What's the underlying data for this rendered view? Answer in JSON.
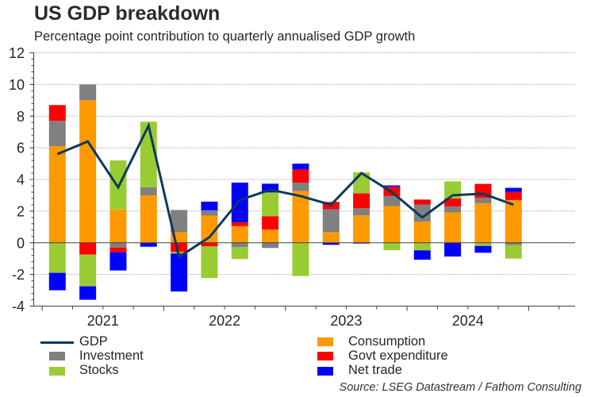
{
  "chart_data": {
    "type": "bar",
    "subtype": "stacked bar with line overlay",
    "title": "US GDP breakdown",
    "subtitle": "Percentage point contribution to quarterly annualised GDP growth",
    "xlabel": "",
    "ylabel": "",
    "ylim": [
      -4,
      12
    ],
    "yticks": [
      -4,
      -2,
      0,
      2,
      4,
      6,
      8,
      10,
      12
    ],
    "grid": true,
    "legend_position": "bottom",
    "year_labels": [
      "2021",
      "2022",
      "2023",
      "2024"
    ],
    "categories": [
      "2021 Q1",
      "2021 Q2",
      "2021 Q3",
      "2021 Q4",
      "2022 Q1",
      "2022 Q2",
      "2022 Q3",
      "2022 Q4",
      "2023 Q1",
      "2023 Q2",
      "2023 Q3",
      "2023 Q4",
      "2024 Q1",
      "2024 Q2",
      "2024 Q3",
      "2024 Q4"
    ],
    "series": [
      {
        "name": "Consumption",
        "kind": "bar",
        "color": "#ff9900",
        "values": [
          6.1,
          9.0,
          2.1,
          3.0,
          0.67,
          1.72,
          1.05,
          0.83,
          3.27,
          0.67,
          1.73,
          2.32,
          1.33,
          1.92,
          2.5,
          2.7
        ]
      },
      {
        "name": "Investment",
        "kind": "bar",
        "color": "#808080",
        "values": [
          1.6,
          1.0,
          -0.3,
          0.5,
          1.4,
          0.33,
          -0.28,
          -0.33,
          0.53,
          1.45,
          0.45,
          0.63,
          1.09,
          0.38,
          0.33,
          -0.15
        ]
      },
      {
        "name": "Govt expenditure",
        "kind": "bar",
        "color": "#ff0000",
        "values": [
          1.0,
          -0.75,
          -0.3,
          0.0,
          -0.58,
          -0.23,
          0.25,
          0.85,
          0.83,
          0.46,
          0.94,
          0.58,
          0.31,
          0.5,
          0.89,
          0.52
        ]
      },
      {
        "name": "Stocks",
        "kind": "bar",
        "color": "#99cc33",
        "values": [
          -1.9,
          -2.0,
          3.1,
          4.15,
          -0.1,
          -2.0,
          -0.75,
          1.5,
          -2.1,
          0.0,
          1.33,
          -0.47,
          -0.48,
          1.08,
          -0.2,
          -0.85
        ]
      },
      {
        "name": "Net trade",
        "kind": "bar",
        "color": "#0000ff",
        "values": [
          -1.1,
          -0.85,
          -1.15,
          -0.25,
          -2.4,
          0.55,
          2.5,
          0.55,
          0.37,
          -0.13,
          -0.05,
          0.09,
          -0.59,
          -0.87,
          -0.43,
          0.25
        ]
      },
      {
        "name": "GDP",
        "kind": "line",
        "color": "#0d3a5c",
        "values": [
          5.6,
          6.4,
          3.5,
          7.4,
          -0.9,
          0.35,
          2.7,
          3.35,
          2.95,
          2.4,
          4.4,
          3.2,
          1.6,
          3.0,
          3.1,
          2.4
        ]
      }
    ],
    "source": "Source: LSEG Datastream / Fathom Consulting"
  },
  "legend": {
    "left": [
      {
        "label": "GDP",
        "color": "#0d3a5c",
        "shape": "line"
      },
      {
        "label": "Investment",
        "color": "#808080",
        "shape": "square"
      },
      {
        "label": "Stocks",
        "color": "#99cc33",
        "shape": "square"
      }
    ],
    "right": [
      {
        "label": "Consumption",
        "color": "#ff9900",
        "shape": "square"
      },
      {
        "label": "Govt expenditure",
        "color": "#ff0000",
        "shape": "square"
      },
      {
        "label": "Net trade",
        "color": "#0000ff",
        "shape": "square"
      }
    ]
  }
}
